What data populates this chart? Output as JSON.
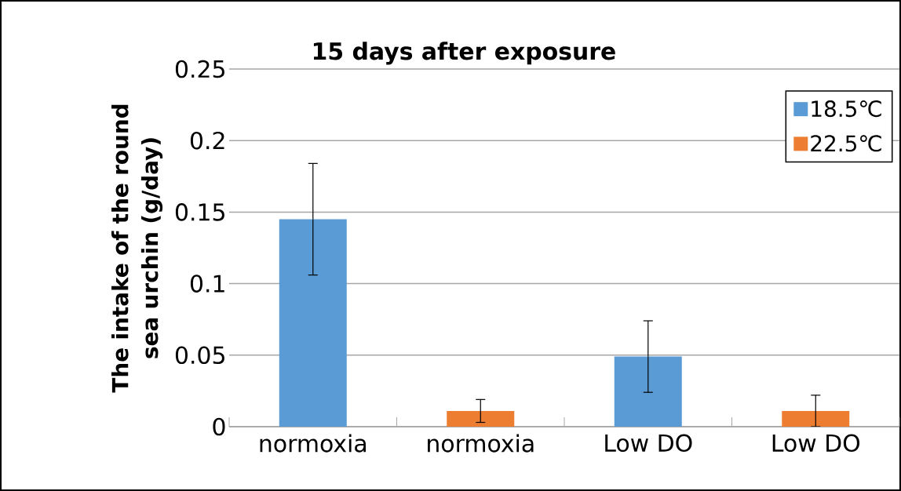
{
  "chart_data": {
    "type": "bar",
    "title": "15 days after exposure",
    "ylabel": "The intake of the round sea urchin (g/day)",
    "categories": [
      "normoxia",
      "normoxia",
      "Low DO",
      "Low DO"
    ],
    "series": [
      {
        "name": "18.5℃",
        "color": "#5b9bd5",
        "values": [
          0.145,
          null,
          0.049,
          null
        ],
        "errors": [
          0.039,
          null,
          0.025,
          null
        ]
      },
      {
        "name": "22.5℃",
        "color": "#ed7d31",
        "values": [
          null,
          0.011,
          null,
          0.011
        ],
        "errors": [
          null,
          0.008,
          null,
          0.011
        ]
      }
    ],
    "ylim": [
      0,
      0.25
    ],
    "yticks": [
      0,
      0.05,
      0.1,
      0.15,
      0.2,
      0.25
    ],
    "grid": "y",
    "legend": "top right"
  }
}
